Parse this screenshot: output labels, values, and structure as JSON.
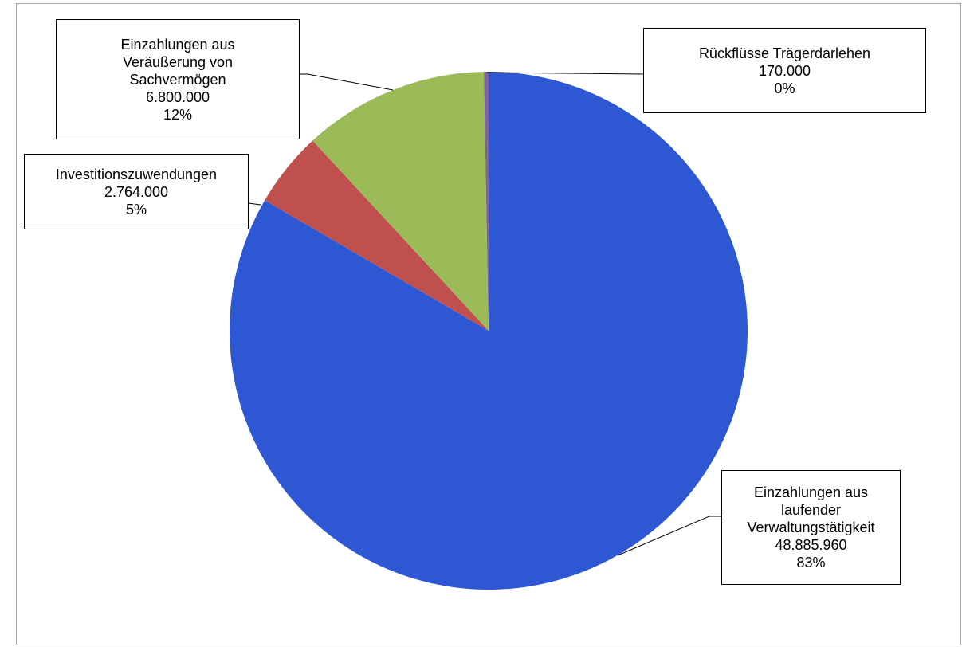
{
  "chart_data": {
    "type": "pie",
    "title": "",
    "start_angle": "12 o'clock",
    "direction": "clockwise",
    "slices": [
      {
        "name_lines": [
          "Einzahlungen aus",
          "laufender",
          "Verwaltungstätigkeit"
        ],
        "value_label": "48.885.960",
        "percent_label": "83%",
        "value": 48885960,
        "color": "#2e58d3"
      },
      {
        "name_lines": [
          "Investitionszuwendungen"
        ],
        "value_label": "2.764.000",
        "percent_label": "5%",
        "value": 2764000,
        "color": "#c0504d"
      },
      {
        "name_lines": [
          "Einzahlungen aus",
          "Veräußerung von",
          "Sachvermögen"
        ],
        "value_label": "6.800.000",
        "percent_label": "12%",
        "value": 6800000,
        "color": "#9bbb59"
      },
      {
        "name_lines": [
          "Rückflüsse Trägerdarlehen"
        ],
        "value_label": "170.000",
        "percent_label": "0%",
        "value": 170000,
        "color": "#8064a2"
      }
    ]
  }
}
